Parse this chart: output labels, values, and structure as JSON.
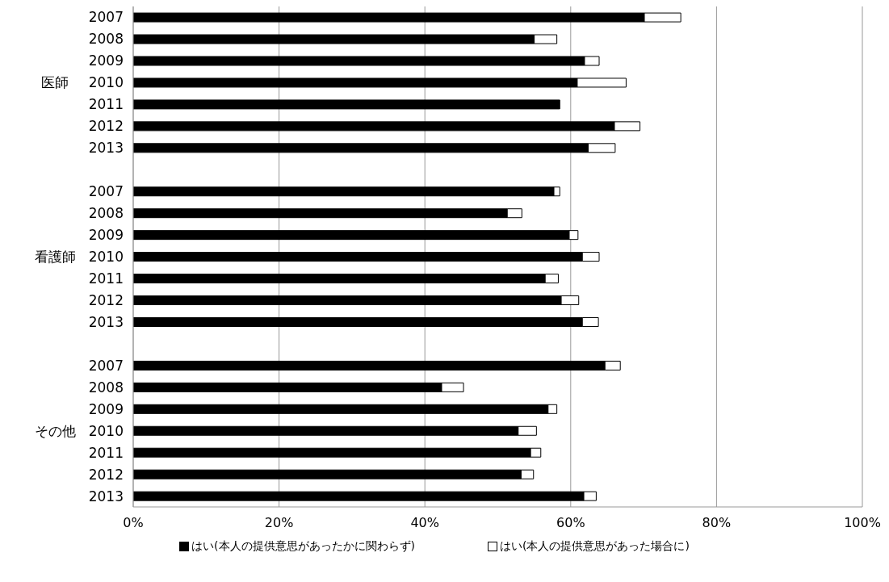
{
  "chart_data": {
    "type": "bar",
    "orientation": "horizontal",
    "stacked": true,
    "categories": [
      "2007",
      "2008",
      "2009",
      "2010",
      "2011",
      "2012",
      "2013",
      null,
      "2007",
      "2008",
      "2009",
      "2010",
      "2011",
      "2012",
      "2013",
      null,
      "2007",
      "2008",
      "2009",
      "2010",
      "2011",
      "2012",
      "2013"
    ],
    "series": [
      {
        "name": "はい(本人の提供意思があったかに関わらず)",
        "color": "#000000",
        "values": [
          70.1,
          55.0,
          61.9,
          60.9,
          58.5,
          66.0,
          62.4,
          null,
          57.7,
          51.3,
          59.8,
          61.6,
          56.5,
          58.7,
          61.6,
          null,
          64.7,
          42.3,
          56.9,
          52.8,
          54.5,
          53.2,
          61.8
        ]
      },
      {
        "name": "はい(本人の提供意思があった場合に)",
        "color": "#ffffff",
        "values": [
          5.0,
          3.1,
          2.0,
          6.7,
          0,
          3.5,
          3.7,
          null,
          0.8,
          2.0,
          1.2,
          2.3,
          1.8,
          2.4,
          2.2,
          null,
          2.1,
          3.0,
          1.2,
          2.5,
          1.4,
          1.7,
          1.7
        ]
      }
    ],
    "annotations": [
      "医師",
      "看護師",
      "その他"
    ],
    "xlim": [
      0,
      100
    ],
    "xticks": [
      {
        "value": 0,
        "label": "0%"
      },
      {
        "value": 20,
        "label": "20%"
      },
      {
        "value": 40,
        "label": "40%"
      },
      {
        "value": 60,
        "label": "60%"
      },
      {
        "value": 80,
        "label": "80%"
      },
      {
        "value": 100,
        "label": "100%"
      }
    ],
    "grid": "x",
    "legend": "bottom"
  }
}
